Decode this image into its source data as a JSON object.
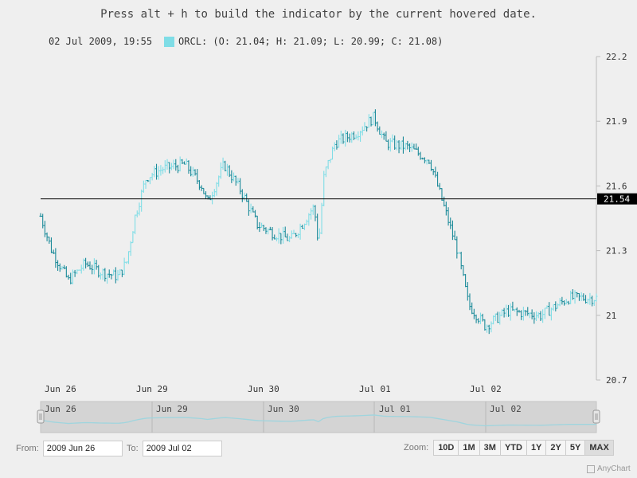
{
  "title": "Press alt + h to build the indicator by the current hovered date.",
  "legend": {
    "date": "02 Jul 2009, 19:55",
    "text": "ORCL: (O: 21.04; H: 21.09; L: 20.99; C: 21.08)",
    "color": "#7fdde6"
  },
  "range": {
    "from_label": "From:",
    "from_value": "2009 Jun 26",
    "to_label": "To:",
    "to_value": "2009 Jul 02"
  },
  "zoom": {
    "label": "Zoom:",
    "buttons": [
      "10D",
      "1M",
      "3M",
      "YTD",
      "1Y",
      "2Y",
      "5Y",
      "MAX"
    ],
    "selected": "MAX"
  },
  "credit": "AnyChart",
  "colors": {
    "up": "#7fdde6",
    "down": "#1b8a99",
    "crosshair": "#000000",
    "scroller_line": "#9fd5de"
  },
  "chart_data": {
    "type": "ohlc",
    "series": [
      {
        "name": "ORCL"
      }
    ],
    "yaxis": {
      "ticks": [
        "22.2",
        "21.9",
        "21.6",
        "21.3",
        "21",
        "20.7"
      ],
      "ylim": [
        20.7,
        22.2
      ],
      "position": "right"
    },
    "xaxis": {
      "ticks": [
        "Jun 26",
        "Jun 29",
        "Jun 30",
        "Jul 01",
        "Jul 02"
      ]
    },
    "crosshair_value": "21.54",
    "scroller_ticks": [
      "Jun 26",
      "Jun 29",
      "Jun 30",
      "Jul 01",
      "Jul 02"
    ],
    "close_path": [
      [
        0,
        21.46
      ],
      [
        0.02,
        21.3
      ],
      [
        0.05,
        21.16
      ],
      [
        0.08,
        21.24
      ],
      [
        0.11,
        21.2
      ],
      [
        0.14,
        21.18
      ],
      [
        0.155,
        21.25
      ],
      [
        0.17,
        21.46
      ],
      [
        0.19,
        21.64
      ],
      [
        0.22,
        21.68
      ],
      [
        0.26,
        21.7
      ],
      [
        0.29,
        21.6
      ],
      [
        0.3,
        21.52
      ],
      [
        0.33,
        21.7
      ],
      [
        0.36,
        21.58
      ],
      [
        0.39,
        21.42
      ],
      [
        0.42,
        21.38
      ],
      [
        0.45,
        21.35
      ],
      [
        0.47,
        21.42
      ],
      [
        0.49,
        21.5
      ],
      [
        0.495,
        21.45
      ],
      [
        0.5,
        21.32
      ],
      [
        0.51,
        21.65
      ],
      [
        0.53,
        21.8
      ],
      [
        0.57,
        21.85
      ],
      [
        0.6,
        21.92
      ],
      [
        0.62,
        21.8
      ],
      [
        0.66,
        21.78
      ],
      [
        0.7,
        21.72
      ],
      [
        0.75,
        21.3
      ],
      [
        0.77,
        21.05
      ],
      [
        0.8,
        20.95
      ],
      [
        0.84,
        21.02
      ],
      [
        0.9,
        21.0
      ],
      [
        0.95,
        21.08
      ],
      [
        1.0,
        21.08
      ]
    ]
  }
}
